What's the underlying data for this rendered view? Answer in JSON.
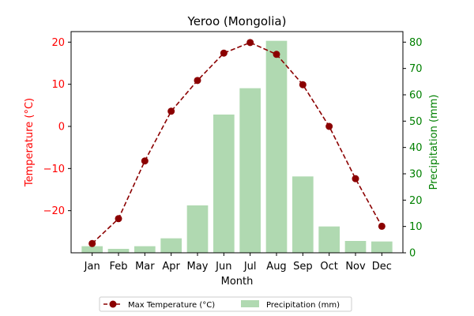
{
  "chart_data": {
    "type": "bar",
    "title": "Yeroo (Mongolia)",
    "xlabel": "Month",
    "ylabel_left": "Temperature (°C)",
    "ylabel_right": "Precipitation (mm)",
    "categories": [
      "Jan",
      "Feb",
      "Mar",
      "Apr",
      "May",
      "Jun",
      "Jul",
      "Aug",
      "Sep",
      "Oct",
      "Nov",
      "Dec"
    ],
    "left_ylim": [
      -30,
      22.5
    ],
    "left_ticks": [
      -20,
      -10,
      0,
      10,
      20
    ],
    "right_ylim": [
      0,
      84
    ],
    "right_ticks": [
      0,
      10,
      20,
      30,
      40,
      50,
      60,
      70,
      80
    ],
    "series": [
      {
        "name": "Max Temperature (°C)",
        "kind": "line",
        "axis": "left",
        "color": "#8b0000",
        "line_style": "dashed",
        "marker": "circle",
        "values": [
          -27.8,
          -21.9,
          -8.2,
          3.6,
          10.9,
          17.4,
          19.9,
          17.1,
          9.9,
          0.0,
          -12.4,
          -23.7
        ]
      },
      {
        "name": "Precipitation (mm)",
        "kind": "bar",
        "axis": "right",
        "color": "#b0d9b1",
        "values": [
          2.5,
          1.5,
          2.5,
          5.5,
          18,
          52.5,
          62.5,
          80.5,
          29,
          10,
          4.5,
          4.3
        ]
      }
    ],
    "left_axis_color": "#ff0000",
    "right_axis_color": "#008000",
    "legend_position": "bottom-center"
  }
}
